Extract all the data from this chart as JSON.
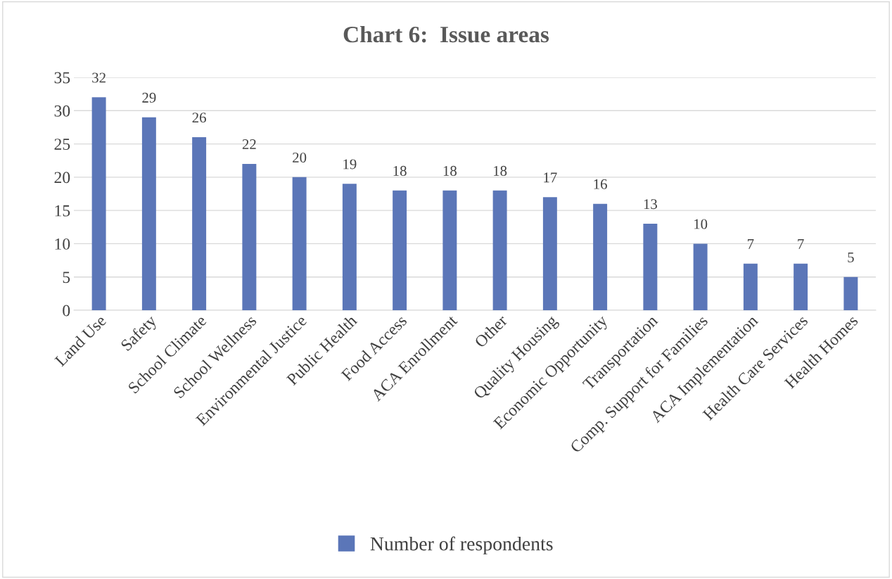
{
  "chart_data": {
    "type": "bar",
    "title": "Chart 6:  Issue areas",
    "categories": [
      "Land Use",
      "Safety",
      "School Climate",
      "School Wellness",
      "Environmental Justice",
      "Public Health",
      "Food Access",
      "ACA Enrollment",
      "Other",
      "Quality Housing",
      "Economic Opportunity",
      "Transportation",
      "Comp. Support for Families",
      "ACA Implementation",
      "Health Care Services",
      "Health Homes"
    ],
    "series": [
      {
        "name": "Number of respondents",
        "color": "#5b76b8",
        "values": [
          32,
          29,
          26,
          22,
          20,
          19,
          18,
          18,
          18,
          17,
          16,
          13,
          10,
          7,
          7,
          5
        ]
      }
    ],
    "ylim": [
      0,
      35
    ],
    "yticks": [
      0,
      5,
      10,
      15,
      20,
      25,
      30,
      35
    ],
    "grid": "y",
    "legend": "bottom",
    "data_labels": true
  }
}
